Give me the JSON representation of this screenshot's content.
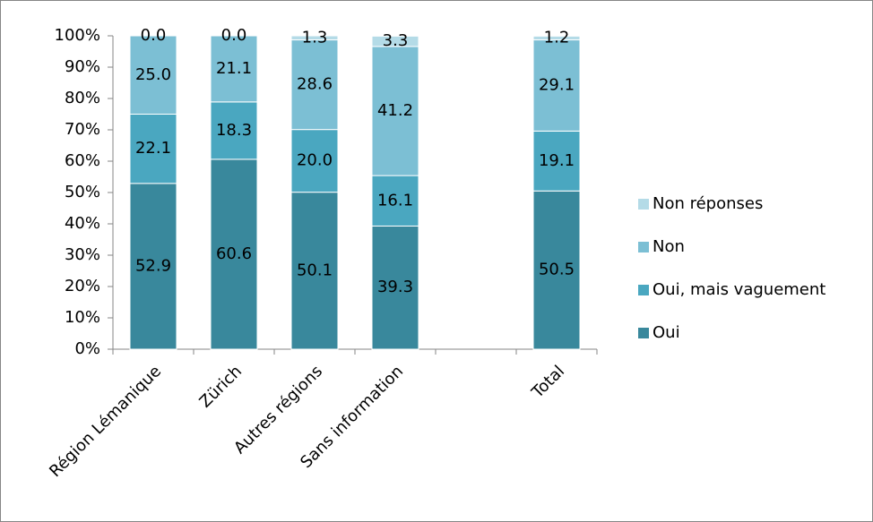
{
  "chart_data": {
    "type": "stacked_bar",
    "categories": [
      "Région Lémanique",
      "Zürich",
      "Autres régions",
      "Sans information",
      null,
      "Total"
    ],
    "series": [
      {
        "name": "Oui",
        "color": "#39889c",
        "values": [
          52.9,
          60.6,
          50.1,
          39.3,
          null,
          50.5
        ],
        "value_labels": [
          "52.9",
          "60.6",
          "50.1",
          "39.3",
          null,
          "50.5"
        ]
      },
      {
        "name": "Oui, mais vaguement",
        "color": "#4aa7c0",
        "values": [
          22.1,
          18.3,
          20.0,
          16.1,
          null,
          19.1
        ],
        "value_labels": [
          "22.1",
          "18.3",
          "20.0",
          "16.1",
          null,
          "19.1"
        ]
      },
      {
        "name": "Non",
        "color": "#7cbfd4",
        "values": [
          25.0,
          21.1,
          28.6,
          41.2,
          null,
          29.1
        ],
        "value_labels": [
          "25.0",
          "21.1",
          "28.6",
          "41.2",
          null,
          "29.1"
        ]
      },
      {
        "name": "Non réponses",
        "color": "#b4dbe7",
        "values": [
          0.0,
          0.0,
          1.3,
          3.3,
          null,
          1.2
        ],
        "value_labels": [
          "0.0",
          "0.0",
          "1.3",
          "3.3",
          null,
          "1.2"
        ]
      }
    ],
    "ylim": [
      0,
      100
    ],
    "yticks": [
      {
        "value": 0,
        "label": "0%"
      },
      {
        "value": 10,
        "label": "10%"
      },
      {
        "value": 20,
        "label": "20%"
      },
      {
        "value": 30,
        "label": "30%"
      },
      {
        "value": 40,
        "label": "40%"
      },
      {
        "value": 50,
        "label": "50%"
      },
      {
        "value": 60,
        "label": "60%"
      },
      {
        "value": 70,
        "label": "70%"
      },
      {
        "value": 80,
        "label": "80%"
      },
      {
        "value": 90,
        "label": "90%"
      },
      {
        "value": 100,
        "label": "100%"
      }
    ],
    "grid": false,
    "legend": "right"
  }
}
